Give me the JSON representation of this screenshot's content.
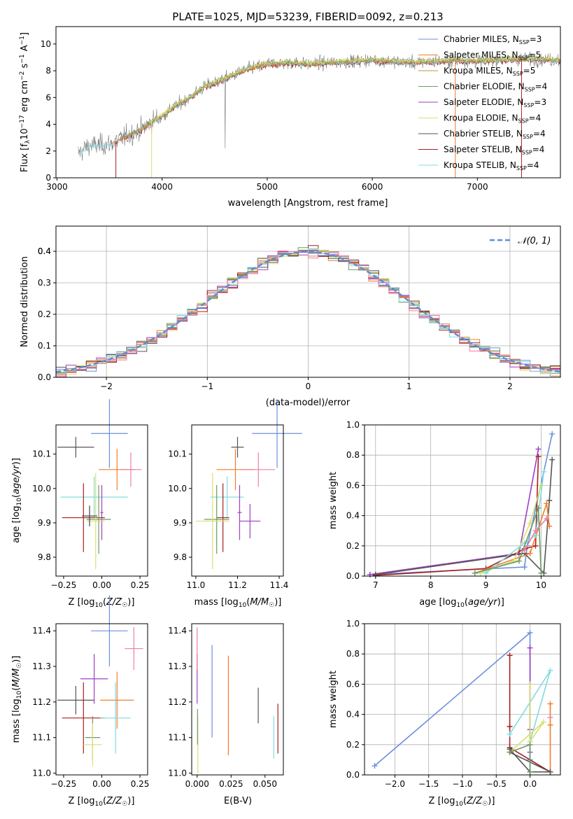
{
  "colors": {
    "chabrier_miles": "#6a8fe0",
    "salpeter_miles": "#f07d2c",
    "kroupa_miles": "#c0903a",
    "chabrier_elodie": "#6e9a62",
    "salpeter_elodie": "#9e3fc4",
    "kroupa_elodie": "#d8e070",
    "chabrier_stelib": "#555555",
    "salpeter_stelib": "#a82020",
    "kroupa_stelib": "#80dce0",
    "pink": "#ef7fa0",
    "normal_curve": "#5b8dd6",
    "grid": "#b0b0b0"
  },
  "chart_data": [
    {
      "id": "spectrum",
      "type": "line",
      "title": "PLATE=1025, MJD=53239, FIBERID=0092, z=0.213",
      "xlabel": "wavelength [Angstrom, rest frame]",
      "ylabel": "Flux [f_λ10⁻¹⁷ erg cm⁻² s⁻¹ A⁻¹]",
      "xlim": [
        2990,
        7790
      ],
      "ylim": [
        0,
        11.3
      ],
      "xticks": [
        "3000",
        "4000",
        "5000",
        "6000",
        "7000"
      ],
      "yticks": [
        "0",
        "2",
        "4",
        "6",
        "8",
        "10"
      ],
      "legend_position": "top-right",
      "continuum": {
        "x": [
          3200,
          3300,
          3500,
          3600,
          3800,
          3900,
          4000,
          4100,
          4300,
          4400,
          4600,
          4800,
          5000,
          5200,
          5400,
          5600,
          5800,
          6000,
          6200,
          6400,
          6600,
          6800,
          7000,
          7200,
          7400,
          7790
        ],
        "y": [
          1.8,
          2.4,
          2.5,
          2.9,
          3.6,
          4.2,
          4.6,
          5.2,
          6.2,
          6.8,
          7.4,
          8.1,
          8.5,
          8.6,
          8.5,
          8.6,
          8.7,
          8.8,
          8.7,
          8.6,
          8.7,
          8.8,
          8.7,
          8.8,
          8.9,
          8.8
        ]
      },
      "series": [
        {
          "name": "Chabrier MILES, N_SSP=3"
        },
        {
          "name": "Salpeter MILES, N_SSP=5"
        },
        {
          "name": "Kroupa MILES, N_SSP=5"
        },
        {
          "name": "Chabrier ELODIE, N_SSP=4"
        },
        {
          "name": "Salpeter ELODIE, N_SSP=3"
        },
        {
          "name": "Kroupa ELODIE, N_SSP=4"
        },
        {
          "name": "Chabrier STELIB, N_SSP=4"
        },
        {
          "name": "Salpeter STELIB, N_SSP=4"
        },
        {
          "name": "Kroupa STELIB, N_SSP=4"
        }
      ]
    },
    {
      "id": "residuals",
      "type": "line",
      "xlabel": "(data-model)/error",
      "ylabel": "Normed distribution",
      "xlim": [
        -2.5,
        2.5
      ],
      "ylim": [
        0,
        0.48
      ],
      "xticks": [
        "−2",
        "−1",
        "0",
        "1",
        "2"
      ],
      "yticks": [
        "0.0",
        "0.1",
        "0.2",
        "0.3",
        "0.4"
      ],
      "legend_position": "top-right",
      "legend": "𝒩(0, 1)",
      "bin_width": 0.1,
      "histogram_colors": [
        "#6a8fe0",
        "#f07d2c",
        "#c0903a",
        "#6e9a62",
        "#9e3fc4",
        "#d8e070",
        "#555555",
        "#a82020",
        "#80dce0",
        "#ef7fa0"
      ]
    },
    {
      "id": "age_vs_Z",
      "type": "scatter",
      "xlabel": "Z [log₁₀(Z/Z☉)]",
      "ylabel": "age  [log₁₀(age/yr)]",
      "xlim": [
        -0.3,
        0.3
      ],
      "ylim": [
        9.745,
        10.185
      ],
      "xticks": [
        "−0.25",
        "0.00",
        "0.25"
      ],
      "yticks": [
        "9.8",
        "9.9",
        "10.0",
        "10.1"
      ],
      "points": [
        {
          "color": "#6a8fe0",
          "x": 0.05,
          "y": 10.16,
          "xerr": 0.12,
          "yerr": 0.1
        },
        {
          "color": "#f07d2c",
          "x": 0.1,
          "y": 10.055,
          "xerr": 0.12,
          "yerr": 0.06
        },
        {
          "color": "#ef7fa0",
          "x": 0.19,
          "y": 10.055,
          "xerr": 0.07,
          "yerr": 0.05
        },
        {
          "color": "#555555",
          "x": -0.17,
          "y": 10.12,
          "xerr": 0.12,
          "yerr": 0.03
        },
        {
          "color": "#80dce0",
          "x": -0.05,
          "y": 9.975,
          "xerr": 0.22,
          "yerr": 0.06
        },
        {
          "color": "#9e3fc4",
          "x": 0.0,
          "y": 9.93,
          "xerr": 0.01,
          "yerr": 0.08
        },
        {
          "color": "#a82020",
          "x": -0.12,
          "y": 9.915,
          "xerr": 0.14,
          "yerr": 0.1
        },
        {
          "color": "#6e9a62",
          "x": -0.02,
          "y": 9.91,
          "xerr": 0.08,
          "yerr": 0.1
        },
        {
          "color": "#d8e070",
          "x": -0.04,
          "y": 9.905,
          "xerr": 0.06,
          "yerr": 0.14
        },
        {
          "color": "#444444",
          "x": -0.08,
          "y": 9.92,
          "xerr": 0.05,
          "yerr": 0.03
        }
      ]
    },
    {
      "id": "age_vs_mass",
      "type": "scatter",
      "xlabel": "mass [log₁₀(M/M☉)]",
      "ylabel": "",
      "xlim": [
        10.98,
        11.42
      ],
      "ylim": [
        9.745,
        10.185
      ],
      "xticks": [
        "11.0",
        "11.2",
        "11.4"
      ],
      "yticks": [
        "9.8",
        "9.9",
        "10.0",
        "10.1"
      ],
      "points": [
        {
          "color": "#6a8fe0",
          "x": 11.39,
          "y": 10.16,
          "xerr": 0.12,
          "yerr": 0.1
        },
        {
          "color": "#555555",
          "x": 11.2,
          "y": 10.12,
          "xerr": 0.03,
          "yerr": 0.03
        },
        {
          "color": "#f07d2c",
          "x": 11.19,
          "y": 10.055,
          "xerr": 0.09,
          "yerr": 0.06
        },
        {
          "color": "#ef7fa0",
          "x": 11.3,
          "y": 10.055,
          "xerr": 0.08,
          "yerr": 0.05
        },
        {
          "color": "#80dce0",
          "x": 11.15,
          "y": 9.975,
          "xerr": 0.08,
          "yerr": 0.06
        },
        {
          "color": "#9e3fc4",
          "x": 11.21,
          "y": 9.93,
          "xerr": 0.01,
          "yerr": 0.08
        },
        {
          "color": "#a82020",
          "x": 11.13,
          "y": 9.915,
          "xerr": 0.03,
          "yerr": 0.1
        },
        {
          "color": "#6e9a62",
          "x": 11.1,
          "y": 9.91,
          "xerr": 0.06,
          "yerr": 0.1
        },
        {
          "color": "#d8e070",
          "x": 11.08,
          "y": 9.905,
          "xerr": 0.08,
          "yerr": 0.14
        },
        {
          "color": "#9e3fc4",
          "x": 11.26,
          "y": 9.905,
          "xerr": 0.05,
          "yerr": 0.05
        }
      ]
    },
    {
      "id": "weight_vs_age",
      "type": "line",
      "xlabel": "age  [log₁₀(age/yr)]",
      "ylabel": "mass weight",
      "xlim": [
        6.8,
        10.35
      ],
      "ylim": [
        0,
        1.0
      ],
      "xticks": [
        "7",
        "8",
        "9",
        "10"
      ],
      "yticks": [
        "0.0",
        "0.2",
        "0.4",
        "0.6",
        "0.8",
        "1.0"
      ],
      "series": [
        {
          "color": "#6a8fe0",
          "x": [
            6.9,
            9.7,
            9.75,
            10.2
          ],
          "y": [
            0.01,
            0.06,
            0.2,
            0.94
          ]
        },
        {
          "color": "#9e3fc4",
          "x": [
            6.9,
            9.6,
            9.95
          ],
          "y": [
            0.01,
            0.15,
            0.84
          ]
        },
        {
          "color": "#a82020",
          "x": [
            7.0,
            9.0,
            9.7,
            9.9,
            9.95
          ],
          "y": [
            0.005,
            0.05,
            0.18,
            0.2,
            0.79
          ]
        },
        {
          "color": "#555555",
          "x": [
            7.0,
            9.7,
            10.05,
            10.15,
            10.2
          ],
          "y": [
            0.01,
            0.15,
            0.02,
            0.5,
            0.77
          ]
        },
        {
          "color": "#f07d2c",
          "x": [
            8.8,
            9.8,
            10.1,
            10.15
          ],
          "y": [
            0.02,
            0.15,
            0.48,
            0.33
          ]
        },
        {
          "color": "#d8e070",
          "x": [
            8.9,
            9.5,
            9.8,
            10.0
          ],
          "y": [
            0.02,
            0.1,
            0.35,
            0.6
          ]
        },
        {
          "color": "#80dce0",
          "x": [
            9.0,
            9.7,
            9.9,
            10.05
          ],
          "y": [
            0.02,
            0.22,
            0.27,
            0.69
          ]
        },
        {
          "color": "#6e9a62",
          "x": [
            8.8,
            9.6,
            9.95,
            10.0
          ],
          "y": [
            0.02,
            0.1,
            0.45,
            0.02
          ]
        },
        {
          "color": "#ef7fa0",
          "x": [
            9.7,
            9.9,
            10.1
          ],
          "y": [
            0.17,
            0.3,
            0.38
          ]
        }
      ]
    },
    {
      "id": "mass_vs_Z",
      "type": "scatter",
      "xlabel": "Z [log₁₀(Z/Z☉)]",
      "ylabel": "mass [log₁₀(M/M☉)]",
      "xlim": [
        -0.3,
        0.3
      ],
      "ylim": [
        10.995,
        11.42
      ],
      "xticks": [
        "−0.25",
        "0.00",
        "0.25"
      ],
      "yticks": [
        "11.0",
        "11.1",
        "11.2",
        "11.3",
        "11.4"
      ],
      "points": [
        {
          "color": "#6a8fe0",
          "x": 0.05,
          "y": 11.4,
          "xerr": 0.12,
          "yerr": 0.1
        },
        {
          "color": "#ef7fa0",
          "x": 0.21,
          "y": 11.35,
          "xerr": 0.06,
          "yerr": 0.06
        },
        {
          "color": "#9e3fc4",
          "x": -0.05,
          "y": 11.265,
          "xerr": 0.09,
          "yerr": 0.07
        },
        {
          "color": "#555555",
          "x": -0.17,
          "y": 11.205,
          "xerr": 0.12,
          "yerr": 0.04
        },
        {
          "color": "#f07d2c",
          "x": 0.1,
          "y": 11.205,
          "xerr": 0.11,
          "yerr": 0.08
        },
        {
          "color": "#a82020",
          "x": -0.12,
          "y": 11.155,
          "xerr": 0.14,
          "yerr": 0.1
        },
        {
          "color": "#80dce0",
          "x": 0.09,
          "y": 11.155,
          "xerr": 0.1,
          "yerr": 0.1
        },
        {
          "color": "#6e9a62",
          "x": -0.06,
          "y": 11.1,
          "xerr": 0.05,
          "yerr": 0.06
        },
        {
          "color": "#d8e070",
          "x": -0.06,
          "y": 11.08,
          "xerr": 0.06,
          "yerr": 0.06
        }
      ]
    },
    {
      "id": "mass_vs_ebv",
      "type": "scatter",
      "xlabel": "E(B-V)",
      "ylabel": "",
      "xlim": [
        -0.004,
        0.0635
      ],
      "ylim": [
        10.995,
        11.42
      ],
      "xticks": [
        "0.000",
        "0.025",
        "0.050"
      ],
      "yticks": [
        "11.0",
        "11.1",
        "11.2",
        "11.3",
        "11.4"
      ],
      "points": [
        {
          "color": "#9e3fc4",
          "x": 0.0,
          "y": 11.265,
          "xerr": 0,
          "yerr": 0.07
        },
        {
          "color": "#ef7fa0",
          "x": 0.0,
          "y": 11.35,
          "xerr": 0,
          "yerr": 0.06
        },
        {
          "color": "#6a8fe0",
          "x": 0.011,
          "y": 11.23,
          "xerr": 0,
          "yerr": 0.13
        },
        {
          "color": "#f07d2c",
          "x": 0.023,
          "y": 11.19,
          "xerr": 0,
          "yerr": 0.14
        },
        {
          "color": "#555555",
          "x": 0.045,
          "y": 11.19,
          "xerr": 0,
          "yerr": 0.05
        },
        {
          "color": "#80dce0",
          "x": 0.0565,
          "y": 11.1,
          "xerr": 0,
          "yerr": 0.06
        },
        {
          "color": "#a82020",
          "x": 0.0595,
          "y": 11.125,
          "xerr": 0,
          "yerr": 0.07
        },
        {
          "color": "#d8e070",
          "x": 0.0005,
          "y": 11.08,
          "xerr": 0,
          "yerr": 0.08
        },
        {
          "color": "#6e9a62",
          "x": 0.0003,
          "y": 11.13,
          "xerr": 0,
          "yerr": 0.05
        }
      ]
    },
    {
      "id": "weight_vs_Z",
      "type": "line",
      "xlabel": "Z [log₁₀(Z/Z☉)]",
      "ylabel": "mass weight",
      "xlim": [
        -2.45,
        0.45
      ],
      "ylim": [
        0,
        1.0
      ],
      "xticks": [
        "−2.0",
        "−1.5",
        "−1.0",
        "−0.5",
        "0.0"
      ],
      "yticks": [
        "0.0",
        "0.2",
        "0.4",
        "0.6",
        "0.8",
        "1.0"
      ],
      "series": [
        {
          "color": "#6a8fe0",
          "x": [
            -2.3,
            0.0,
            0.0
          ],
          "y": [
            0.06,
            0.94,
            0.1
          ]
        },
        {
          "color": "#a82020",
          "x": [
            -0.3,
            -0.3,
            -0.3,
            0.3
          ],
          "y": [
            0.79,
            0.32,
            0.18,
            0.02
          ]
        },
        {
          "color": "#9e3fc4",
          "x": [
            0.0,
            0.0,
            0.0,
            0.0
          ],
          "y": [
            0.84,
            0.3,
            0.15,
            0.02
          ]
        },
        {
          "color": "#80dce0",
          "x": [
            0.0,
            0.0,
            0.3,
            -0.3
          ],
          "y": [
            0.02,
            0.22,
            0.69,
            0.27
          ]
        },
        {
          "color": "#d8e070",
          "x": [
            0.0,
            0.0,
            0.2,
            -0.3
          ],
          "y": [
            0.6,
            0.22,
            0.35,
            0.15
          ]
        },
        {
          "color": "#f07d2c",
          "x": [
            0.3,
            0.3,
            0.3
          ],
          "y": [
            0.47,
            0.33,
            0.02
          ]
        },
        {
          "color": "#555555",
          "x": [
            -0.3,
            0.0,
            0.3,
            -0.3
          ],
          "y": [
            0.17,
            0.02,
            0.02,
            0.15
          ]
        },
        {
          "color": "#6e9a62",
          "x": [
            -0.3,
            0.0,
            0.0
          ],
          "y": [
            0.15,
            0.2,
            0.02
          ]
        },
        {
          "color": "#ef7fa0",
          "x": [
            0.3
          ],
          "y": [
            0.38
          ]
        }
      ]
    }
  ]
}
